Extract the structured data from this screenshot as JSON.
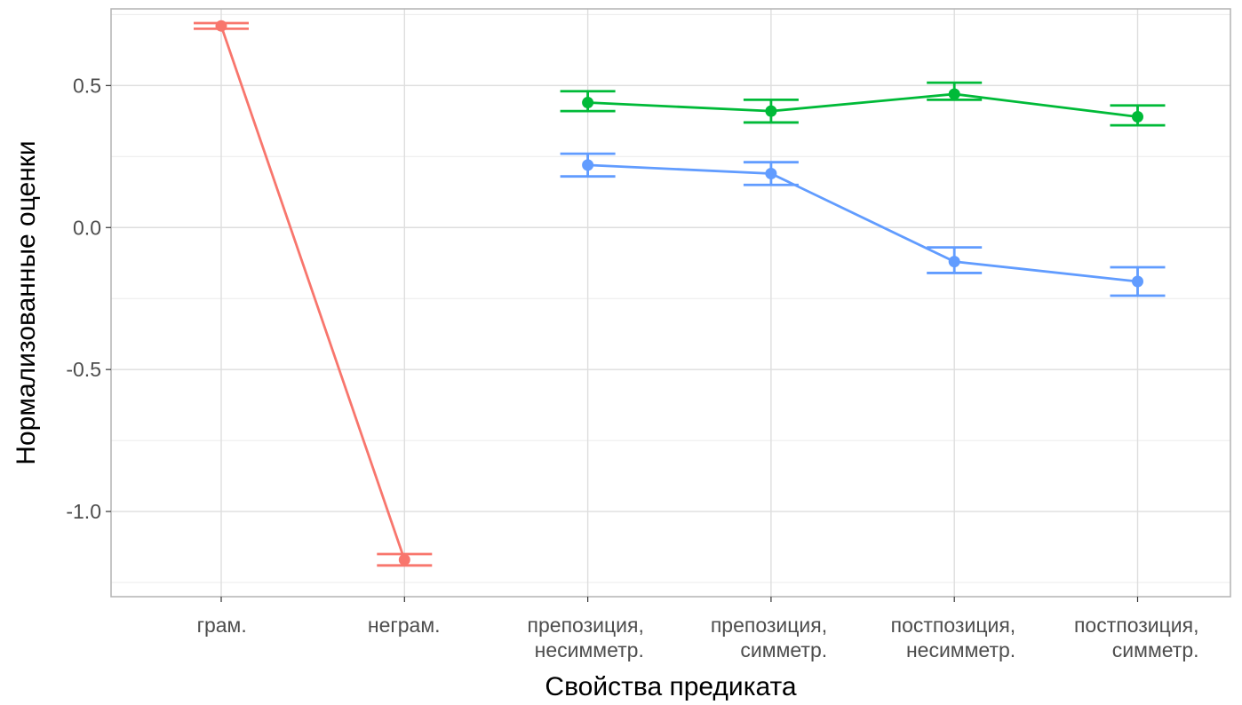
{
  "chart_data": {
    "type": "line",
    "title": "",
    "xlabel": "Свойства предиката",
    "ylabel": "Нормализованные оценки",
    "ylim": [
      -1.3,
      0.77
    ],
    "y_ticks": [
      -1.0,
      -0.5,
      0.0,
      0.5
    ],
    "y_tick_labels": [
      "-1.0",
      "-0.5",
      "0.0",
      "0.5"
    ],
    "grid": true,
    "legend": "none",
    "categories": [
      [
        "грам."
      ],
      [
        "неграм."
      ],
      [
        "препозиция,",
        "несимметр."
      ],
      [
        "препозиция,",
        "симметр."
      ],
      [
        "постпозиция,",
        "несимметр."
      ],
      [
        "постпозиция,",
        "симметр."
      ]
    ],
    "series": [
      {
        "color": "#F8766D",
        "points": [
          {
            "x": 0,
            "y": 0.71,
            "lo": 0.7,
            "hi": 0.72
          },
          {
            "x": 1,
            "y": -1.17,
            "lo": -1.19,
            "hi": -1.15
          }
        ]
      },
      {
        "color": "#00BA38",
        "points": [
          {
            "x": 2,
            "y": 0.44,
            "lo": 0.41,
            "hi": 0.48
          },
          {
            "x": 3,
            "y": 0.41,
            "lo": 0.37,
            "hi": 0.45
          },
          {
            "x": 4,
            "y": 0.47,
            "lo": 0.45,
            "hi": 0.51
          },
          {
            "x": 5,
            "y": 0.39,
            "lo": 0.36,
            "hi": 0.43
          }
        ]
      },
      {
        "color": "#619CFF",
        "points": [
          {
            "x": 2,
            "y": 0.22,
            "lo": 0.18,
            "hi": 0.26
          },
          {
            "x": 3,
            "y": 0.19,
            "lo": 0.15,
            "hi": 0.23
          },
          {
            "x": 4,
            "y": -0.12,
            "lo": -0.16,
            "hi": -0.07
          },
          {
            "x": 5,
            "y": -0.19,
            "lo": -0.24,
            "hi": -0.14
          }
        ]
      }
    ]
  }
}
